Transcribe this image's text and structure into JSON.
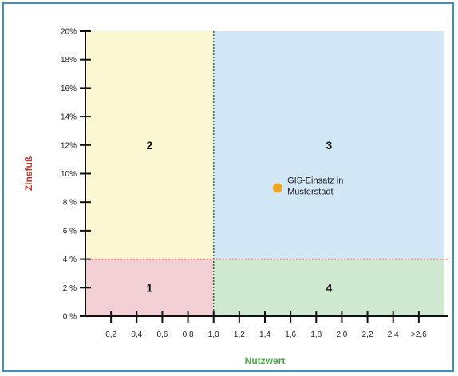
{
  "chart_data": {
    "type": "scatter",
    "xlabel": "Nutzwert",
    "ylabel": "Zinsfuß",
    "xlim": [
      0,
      2.8
    ],
    "ylim": [
      0,
      20
    ],
    "x_ticks": [
      {
        "value": 0.2,
        "label": "0,2"
      },
      {
        "value": 0.4,
        "label": "0,4"
      },
      {
        "value": 0.6,
        "label": "0,6"
      },
      {
        "value": 0.8,
        "label": "0,8"
      },
      {
        "value": 1.0,
        "label": "1,0"
      },
      {
        "value": 1.2,
        "label": "1,2"
      },
      {
        "value": 1.4,
        "label": "1,4"
      },
      {
        "value": 1.6,
        "label": "1,6"
      },
      {
        "value": 1.8,
        "label": "1,8"
      },
      {
        "value": 2.0,
        "label": "2,0"
      },
      {
        "value": 2.2,
        "label": "2,2"
      },
      {
        "value": 2.4,
        "label": "2,4"
      },
      {
        "value": 2.6,
        "label": ">2,6"
      }
    ],
    "y_ticks": [
      {
        "value": 0,
        "label": "0 %"
      },
      {
        "value": 2,
        "label": "2 %"
      },
      {
        "value": 4,
        "label": "4 %"
      },
      {
        "value": 6,
        "label": "6 %"
      },
      {
        "value": 8,
        "label": "8 %"
      },
      {
        "value": 10,
        "label": "10%"
      },
      {
        "value": 12,
        "label": "12%"
      },
      {
        "value": 14,
        "label": "14%"
      },
      {
        "value": 16,
        "label": "16%"
      },
      {
        "value": 18,
        "label": "18%"
      },
      {
        "value": 20,
        "label": "20%"
      }
    ],
    "thresholds": {
      "x": 1.0,
      "y": 4
    },
    "quadrants": [
      {
        "label": "1",
        "x0": 0,
        "x1": 1.0,
        "y0": 0,
        "y1": 4,
        "color": "#f3cfd6"
      },
      {
        "label": "2",
        "x0": 0,
        "x1": 1.0,
        "y0": 4,
        "y1": 20,
        "color": "#fbf7d2"
      },
      {
        "label": "3",
        "x0": 1.0,
        "x1": 2.8,
        "y0": 4,
        "y1": 20,
        "color": "#d2e7f5"
      },
      {
        "label": "4",
        "x0": 1.0,
        "x1": 2.8,
        "y0": 0,
        "y1": 4,
        "color": "#cfe8d0"
      }
    ],
    "points": [
      {
        "x": 1.5,
        "y": 9,
        "label_lines": [
          "GIS-Einsatz in",
          "Musterstadt"
        ],
        "color": "#f0a522"
      }
    ],
    "colors": {
      "xlabel": "#4caa4a",
      "ylabel": "#c0392b",
      "threshold_x": "#2e6b2e",
      "threshold_y": "#c0392b"
    }
  }
}
